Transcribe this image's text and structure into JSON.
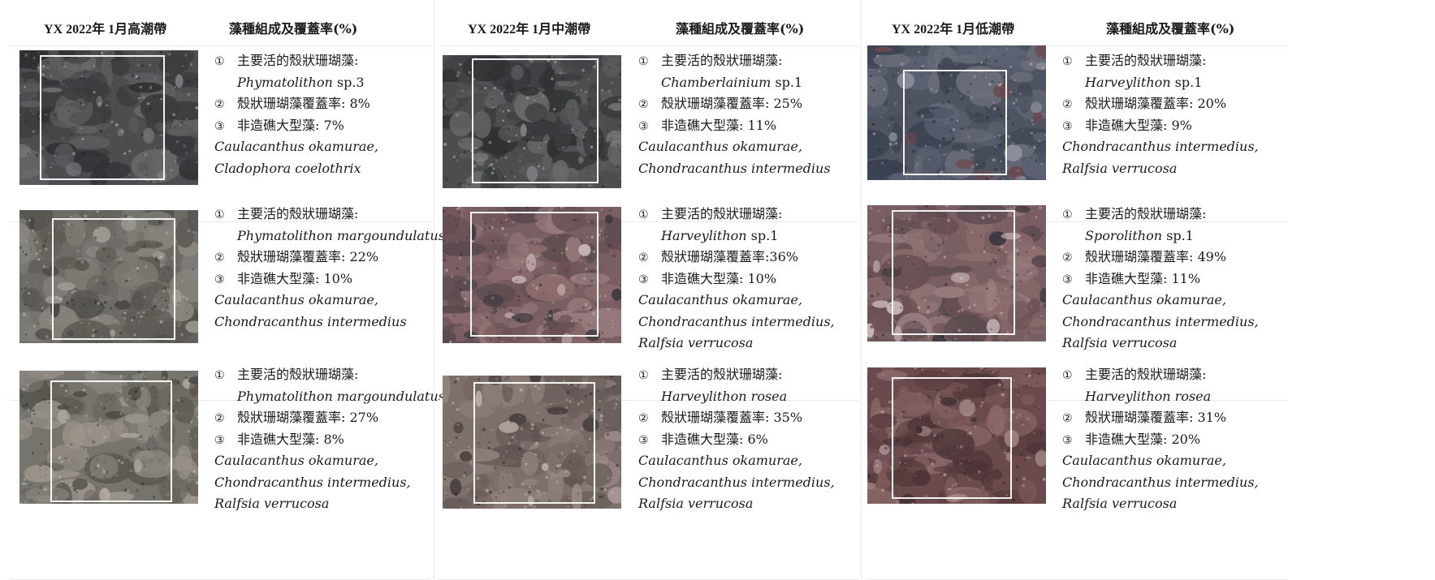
{
  "zones": [
    {
      "title": "YX 2022年 1月高潮帶",
      "subtitle": "藻種組成及覆蓋率(%)",
      "rows": [
        {
          "photo": {
            "palette": "dark-rock"
          },
          "label_1": "主要活的殼狀珊瑚藻:",
          "species_italic": "Phymatolithon",
          "species_suffix": " sp.3",
          "label_2": "殼狀珊瑚藻覆蓋率: 8%",
          "label_3": "非造礁大型藻: 7%",
          "macro_1": "Caulacanthus okamurae,",
          "macro_2": "Cladophora coelothrix",
          "macro_3": ""
        },
        {
          "photo": {
            "palette": "grey-sand"
          },
          "label_1": "主要活的殼狀珊瑚藻:",
          "species_italic": "Phymatolithon margoundulatus",
          "species_suffix": "",
          "label_2": "殼狀珊瑚藻覆蓋率: 22%",
          "label_3": "非造礁大型藻: 10%",
          "macro_1": "Caulacanthus okamurae,",
          "macro_2": "Chondracanthus intermedius",
          "macro_3": ""
        },
        {
          "photo": {
            "palette": "grey-pebble"
          },
          "label_1": "主要活的殼狀珊瑚藻:",
          "species_italic": "Phymatolithon margoundulatus",
          "species_suffix": "",
          "label_2": "殼狀珊瑚藻覆蓋率: 27%",
          "label_3": "非造礁大型藻: 8%",
          "macro_1": "Caulacanthus okamurae,",
          "macro_2": "Chondracanthus intermedius,",
          "macro_3": "Ralfsia verrucosa"
        }
      ]
    },
    {
      "title": "YX 2022年 1月中潮帶",
      "subtitle": "藻種組成及覆蓋率(%)",
      "rows": [
        {
          "photo": {
            "palette": "dark-rock"
          },
          "label_1": "主要活的殼狀珊瑚藻:",
          "species_italic": "Chamberlainium",
          "species_suffix": " sp.1",
          "label_2": "殼狀珊瑚藻覆蓋率: 25%",
          "label_3": "非造礁大型藻: 11%",
          "macro_1": "Caulacanthus okamurae,",
          "macro_2": "Chondracanthus intermedius",
          "macro_3": ""
        },
        {
          "photo": {
            "palette": "pink-pebble"
          },
          "label_1": "主要活的殼狀珊瑚藻:",
          "species_italic": "Harveylithon",
          "species_suffix": " sp.1",
          "label_2": "殼狀珊瑚藻覆蓋率:36%",
          "label_3": "非造礁大型藻: 10%",
          "macro_1": "Caulacanthus okamurae,",
          "macro_2": "Chondracanthus intermedius,",
          "macro_3": "Ralfsia verrucosa"
        },
        {
          "photo": {
            "palette": "pink-grey"
          },
          "label_1": "主要活的殼狀珊瑚藻:",
          "species_italic": "Harveylithon rosea",
          "species_suffix": "",
          "label_2": "殼狀珊瑚藻覆蓋率: 35%",
          "label_3": "非造礁大型藻: 6%",
          "macro_1": "Caulacanthus okamurae,",
          "macro_2": "Chondracanthus intermedius,",
          "macro_3": "Ralfsia verrucosa"
        }
      ]
    },
    {
      "title": "YX 2022年 1月低潮帶",
      "subtitle": "藻種組成及覆蓋率(%)",
      "rows": [
        {
          "photo": {
            "palette": "blue-pebble"
          },
          "label_1": "主要活的殼狀珊瑚藻:",
          "species_italic": "Harveylithon",
          "species_suffix": " sp.1",
          "label_2": "殼狀珊瑚藻覆蓋率: 20%",
          "label_3": "非造礁大型藻: 9%",
          "macro_1": "Chondracanthus intermedius,",
          "macro_2": "Ralfsia verrucosa",
          "macro_3": ""
        },
        {
          "photo": {
            "palette": "pink-pebble"
          },
          "label_1": "主要活的殼狀珊瑚藻:",
          "species_italic": "Sporolithon",
          "species_suffix": " sp.1",
          "label_2": "殼狀珊瑚藻覆蓋率: 49%",
          "label_3": "非造礁大型藻: 11%",
          "macro_1": "Caulacanthus okamurae,",
          "macro_2": "Chondracanthus intermedius,",
          "macro_3": "Ralfsia verrucosa"
        },
        {
          "photo": {
            "palette": "maroon"
          },
          "label_1": "主要活的殼狀珊瑚藻:",
          "species_italic": "Harveylithon rosea",
          "species_suffix": "",
          "label_2": "殼狀珊瑚藻覆蓋率: 31%",
          "label_3": "非造礁大型藻: 20%",
          "macro_1": "Caulacanthus okamurae,",
          "macro_2": "Chondracanthus intermedius,",
          "macro_3": "Ralfsia verrucosa"
        }
      ]
    }
  ],
  "markers": [
    "①",
    "②",
    "③"
  ]
}
